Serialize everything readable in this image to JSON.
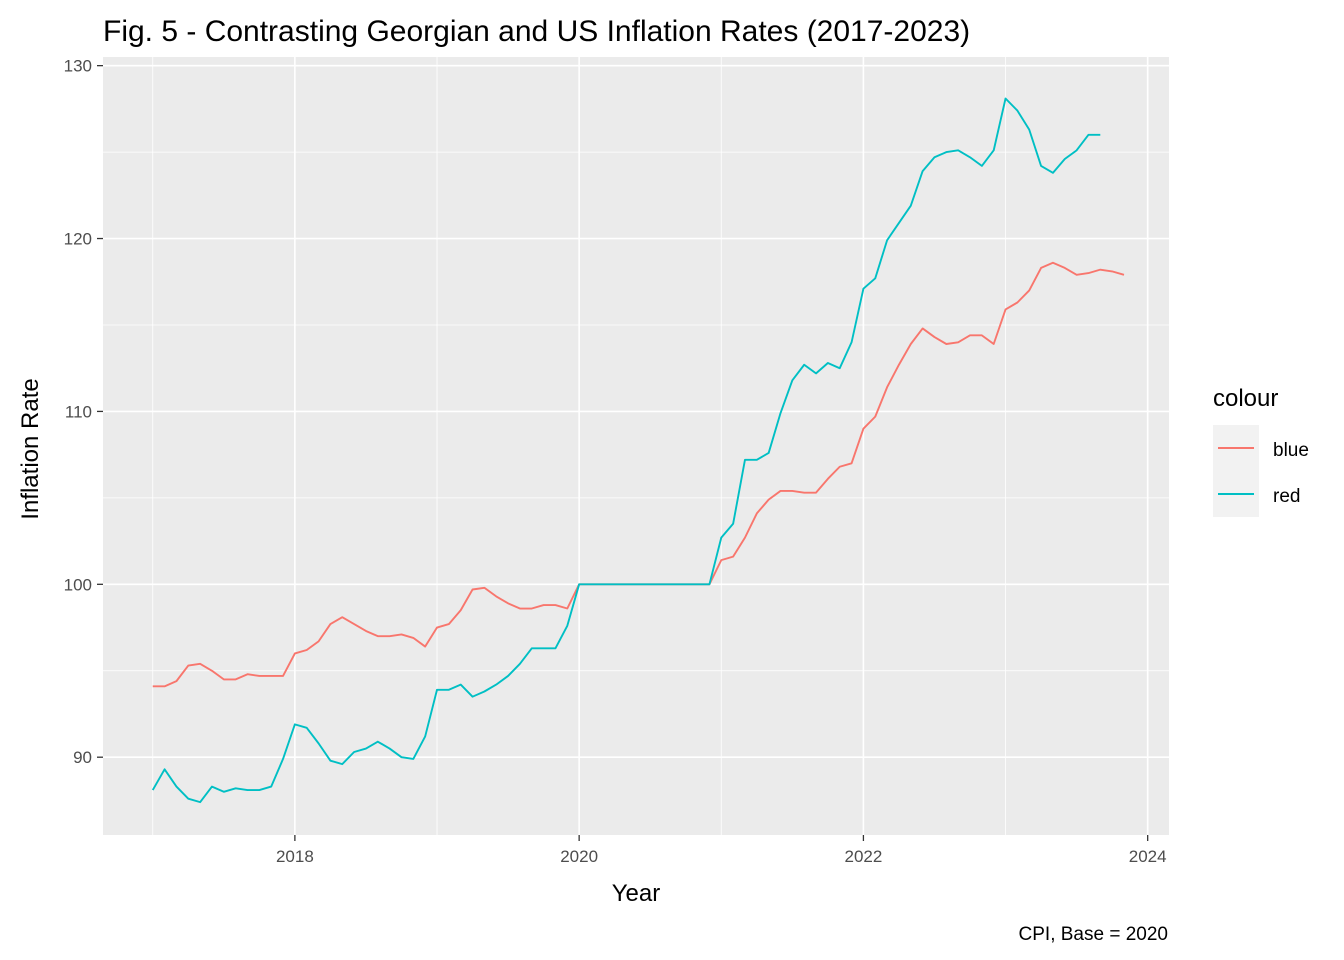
{
  "chart_data": {
    "type": "line",
    "title": "Fig. 5 - Contrasting Georgian and US Inflation Rates (2017-2023)",
    "xlabel": "Year",
    "ylabel": "Inflation Rate",
    "caption": "CPI, Base = 2020",
    "xlim": [
      2016.65,
      2024.15
    ],
    "ylim": [
      85.5,
      130.5
    ],
    "xticks": [
      2018,
      2020,
      2022,
      2024
    ],
    "yticks": [
      90,
      100,
      110,
      120,
      130
    ],
    "grid": true,
    "legend": {
      "title": "colour",
      "placement": "right"
    },
    "series": [
      {
        "name": "blue",
        "color": "#F8766D",
        "x_start": 2017.0,
        "x_step": 0.083333,
        "values": [
          94.1,
          94.1,
          94.4,
          95.3,
          95.4,
          95.0,
          94.5,
          94.5,
          94.8,
          94.7,
          94.7,
          94.7,
          96.0,
          96.2,
          96.7,
          97.7,
          98.1,
          97.7,
          97.3,
          97.0,
          97.0,
          97.1,
          96.9,
          96.4,
          97.5,
          97.7,
          98.5,
          99.7,
          99.8,
          99.3,
          98.9,
          98.6,
          98.6,
          98.8,
          98.8,
          98.6,
          100.0,
          100.0,
          100.0,
          100.0,
          100.0,
          100.0,
          100.0,
          100.0,
          100.0,
          100.0,
          100.0,
          100.0,
          101.4,
          101.6,
          102.7,
          104.1,
          104.9,
          105.4,
          105.4,
          105.3,
          105.3,
          106.1,
          106.8,
          107.0,
          109.0,
          109.7,
          111.4,
          112.7,
          113.9,
          114.8,
          114.3,
          113.9,
          114.0,
          114.4,
          114.4,
          113.9,
          115.9,
          116.3,
          117.0,
          118.3,
          118.6,
          118.3,
          117.9,
          118.0,
          118.2,
          118.1,
          117.9
        ]
      },
      {
        "name": "red",
        "color": "#00BFC4",
        "x_start": 2017.0,
        "x_step": 0.083333,
        "values": [
          88.1,
          89.3,
          88.3,
          87.6,
          87.4,
          88.3,
          88.0,
          88.2,
          88.1,
          88.1,
          88.3,
          89.9,
          91.9,
          91.7,
          90.8,
          89.8,
          89.6,
          90.3,
          90.5,
          90.9,
          90.5,
          90.0,
          89.9,
          91.2,
          93.9,
          93.9,
          94.2,
          93.5,
          93.8,
          94.2,
          94.7,
          95.4,
          96.3,
          96.3,
          96.3,
          97.6,
          100.0,
          100.0,
          100.0,
          100.0,
          100.0,
          100.0,
          100.0,
          100.0,
          100.0,
          100.0,
          100.0,
          100.0,
          102.7,
          103.5,
          107.2,
          107.2,
          107.6,
          109.9,
          111.8,
          112.7,
          112.2,
          112.8,
          112.5,
          114.0,
          117.1,
          117.7,
          119.9,
          120.9,
          121.9,
          123.9,
          124.7,
          125.0,
          125.1,
          124.7,
          124.2,
          125.1,
          128.1,
          127.4,
          126.3,
          124.2,
          123.8,
          124.6,
          125.1,
          126.0,
          126.0
        ]
      }
    ]
  }
}
